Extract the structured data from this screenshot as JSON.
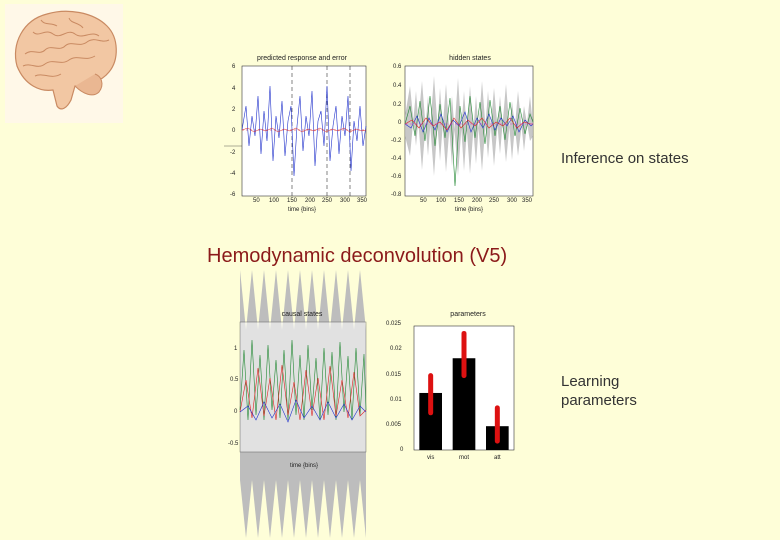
{
  "heading": "Hemodynamic deconvolution (V5)",
  "labels": {
    "inference": "Inference on states",
    "learning_line1": "Learning",
    "learning_line2": "parameters"
  },
  "plots": {
    "predicted": {
      "title": "predicted response and error",
      "xlabel": "time {bins}",
      "yticks": [
        "6",
        "4",
        "2",
        "0",
        "-2",
        "-4",
        "-6"
      ],
      "xticks": [
        "50",
        "100",
        "150",
        "200",
        "250",
        "300",
        "350"
      ]
    },
    "hidden": {
      "title": "hidden states",
      "xlabel": "time {bins}",
      "yticks": [
        "0.6",
        "0.4",
        "0.2",
        "0",
        "-0.2",
        "-0.4",
        "-0.6",
        "-0.8"
      ],
      "xticks": [
        "50",
        "100",
        "150",
        "200",
        "250",
        "300",
        "350"
      ]
    },
    "causal": {
      "title": "causal states",
      "xlabel": "time {bins}",
      "yticks": [
        "1",
        "0.5",
        "0",
        "-0.5"
      ]
    },
    "parameters": {
      "title": "parameters",
      "yticks": [
        "0.025",
        "0.02",
        "0.015",
        "0.01",
        "0.005",
        "0"
      ]
    }
  },
  "chart_data": {
    "type": "bar",
    "title": "parameters",
    "categories": [
      "vis",
      "mot",
      "att"
    ],
    "values": [
      0.0115,
      0.0185,
      0.0048
    ],
    "error_low": [
      0.0075,
      0.015,
      0.0018
    ],
    "error_high": [
      0.015,
      0.0235,
      0.0085
    ],
    "ylim": [
      0,
      0.025
    ],
    "colors": {
      "bar": "#000000",
      "error": "#dd1111"
    }
  },
  "colors": {
    "background": "#fefed8",
    "heading": "#8b1a1a",
    "series_blue": "#2233cc",
    "series_red": "#dd2222",
    "series_green": "#228833",
    "band_gray": "#bdbdbd"
  }
}
